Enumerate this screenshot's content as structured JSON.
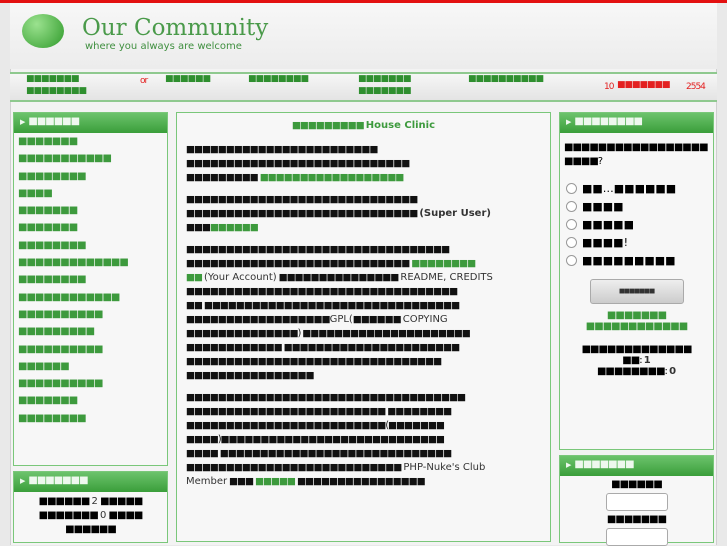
{
  "header": {
    "title": "Our Community",
    "slogan": "where you always are welcome"
  },
  "nav": {
    "item1": "■■■■■■■",
    "item1b": "■■■■■■■■",
    "or": "or",
    "item2": "■■■■■■",
    "item3": "■■■■■■■■",
    "item4": "■■■■■■■",
    "item4b": "■■■■■■■",
    "item5": "■■■■■■■■■■",
    "date_day": "10",
    "date_month": "■■■■■■■",
    "date_year": "2554"
  },
  "left": {
    "title": "■■■■■■",
    "items": [
      "■■■■■■■",
      "■■■■■■■■■■■",
      "■■■■■■■■",
      "■■■■",
      "■■■■■■■",
      "■■■■■■■",
      "■■■■■■■■",
      "■■■■■■■■■■■■■",
      "■■■■■■■■",
      "■■■■■■■■■■■■",
      "■■■■■■■■■■",
      "■■■■■■■■■",
      "■■■■■■■■■■",
      "■■■■■■",
      "■■■■■■■■■■",
      "■■■■■■■",
      "■■■■■■■■"
    ]
  },
  "left2": {
    "title": "■■■■■■■",
    "line1a": "■■■■■■",
    "count1": "2",
    "line1b": "■■■■■",
    "line2a": "■■■■■■■",
    "count2": "0",
    "line2b": "■■■■",
    "line3": "■■■■■■"
  },
  "center": {
    "title": "■■■■■■■■■",
    "site": "House Clinic",
    "lines": [
      "■■■■■■■■■■■■■■■■■■■■■■■■",
      "■■■■■■■■■■■■■■■■■■■■■■■■■■■■",
      "■■■■■■■■■"
    ],
    "link1": "■■■■■■■■■■■■■■■■■■",
    "lines2": [
      "■■■■■■■■■■■■■■■■■■■■■■■■■■■■■",
      "■■■■■■■■■■■■■■■■■■■■■■■■■■■■■"
    ],
    "super_user": "(Super User)",
    "link2": "■■■■■■",
    "line3": "■■■",
    "lines3": [
      "■■■■■■■■■■■■■■■■■■■■■■■■■■■■■■■■■",
      "■■■■■■■■■■■■■■■■■■■■■■■■■■■■"
    ],
    "link3": "■■■■■■■■",
    "link4": "■■",
    "your_account": "(Your Account)",
    "line4": "■■■■■■■■■■■■■■■",
    "readme": "README, CREDITS",
    "lines4": [
      "■■■■■■■■■■■■■■■■■■■■■■■■■■■■■■■■■■",
      "■■ ■■■■■■■■■■■■■■■■■■■■■■■■■■■■■■■■"
    ],
    "line5": "■■■■■■■■■■■■■■■■■■",
    "gpl": "GPL(",
    "line5b": "■■■■■■",
    "copying": "COPYING",
    "lines5": [
      "■■■■■■■■■■■■■■) ■■■■■■■■■■■■■■■■■■■■■",
      "■■■■■■■■■■■■ ■■■■■■■■■■■■■■■■■■■■■■",
      "■■■■■■■■■■■■■■■■■■■■■■■■■■■■■■■■",
      "■■■■■■■■■■■■■■■■"
    ],
    "lines6": [
      "■■■■■■■■■■■■■■■■■■■■■■■■■■■■■■■■■■■",
      "■■■■■■■■■■■■■■■■■■■■■■■■■ ■■■■■■■■",
      "■■■■■■■■■■■■■■■■■■■■■■■■■(■■■■■■■",
      "■■■■)■■■■■■■■■■■■■■■■■■■■■■■■■■■■",
      "■■■■ ■■■■■■■■■■■■■■■■■■■■■■■■■■■■■",
      "■■■■■■■■■■■■■■■■■■■■■■■■■■■"
    ],
    "club": "PHP-Nuke's Club",
    "member": "Member",
    "line7": "■■■",
    "link5": "■■■■■",
    "line7b": "■■■■■■■■■■■■■■■■"
  },
  "poll": {
    "title": "■■■■■■■■",
    "question": "■■■■■■■■■■■■■■■■■■■■■?",
    "options": [
      "■■…■■■■■■",
      "■■■■",
      "■■■■■",
      "■■■■!",
      "■■■■■■■■■"
    ],
    "vote_button": "■■■■■■■",
    "results_link": "■■■■■■■",
    "polls_link": "■■■■■■■■■■■■",
    "votes_label": "■■■■■■■■■■■■■",
    "votes_count": "1",
    "comments_label_a": "■■",
    "comments_count_a": "1",
    "comments_label": "■■■■■■■■",
    "comments_count": "0"
  },
  "login": {
    "title": "■■■■■■■",
    "label1": "■■■■■■",
    "label2": "■■■■■■■"
  }
}
